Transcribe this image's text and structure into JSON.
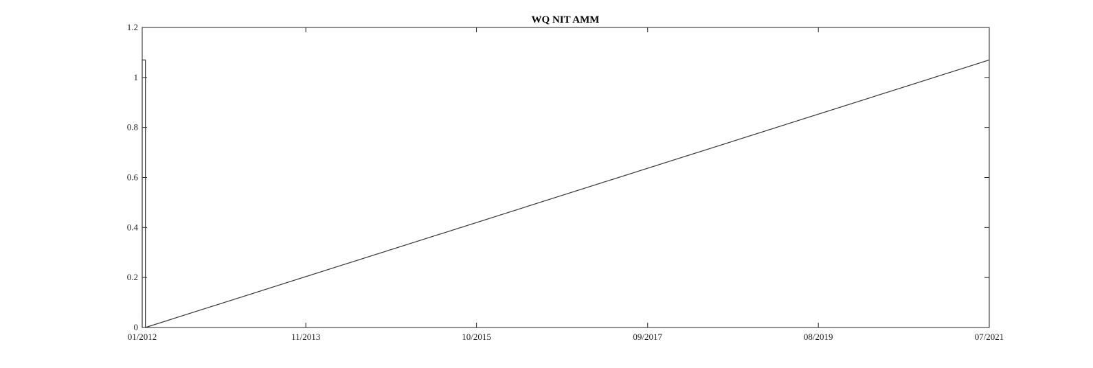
{
  "chart_data": {
    "type": "line",
    "title": "WQ NIT AMM",
    "xlabel": "",
    "ylabel": "",
    "xlim": [
      "2012-01-01",
      "2021-07-01"
    ],
    "ylim": [
      0,
      1.2
    ],
    "x_ticks": [
      {
        "date": "2012-01-01",
        "label": "01/2012"
      },
      {
        "date": "2013-11-01",
        "label": "11/2013"
      },
      {
        "date": "2015-10-01",
        "label": "10/2015"
      },
      {
        "date": "2017-09-01",
        "label": "09/2017"
      },
      {
        "date": "2019-08-01",
        "label": "08/2019"
      },
      {
        "date": "2021-07-01",
        "label": "07/2021"
      }
    ],
    "y_ticks": [
      {
        "value": 0,
        "label": "0"
      },
      {
        "value": 0.2,
        "label": "0.2"
      },
      {
        "value": 0.4,
        "label": "0.4"
      },
      {
        "value": 0.6,
        "label": "0.6"
      },
      {
        "value": 0.8,
        "label": "0.8"
      },
      {
        "value": 1.0,
        "label": "1"
      },
      {
        "value": 1.2,
        "label": "1.2"
      }
    ],
    "grid": false,
    "series": [
      {
        "color": "#333333",
        "x": [
          "2012-01-01",
          "2012-01-01",
          "2012-01-14",
          "2012-01-14",
          "2021-07-01"
        ],
        "y": [
          0,
          1.07,
          1.07,
          0,
          1.07
        ]
      }
    ]
  }
}
